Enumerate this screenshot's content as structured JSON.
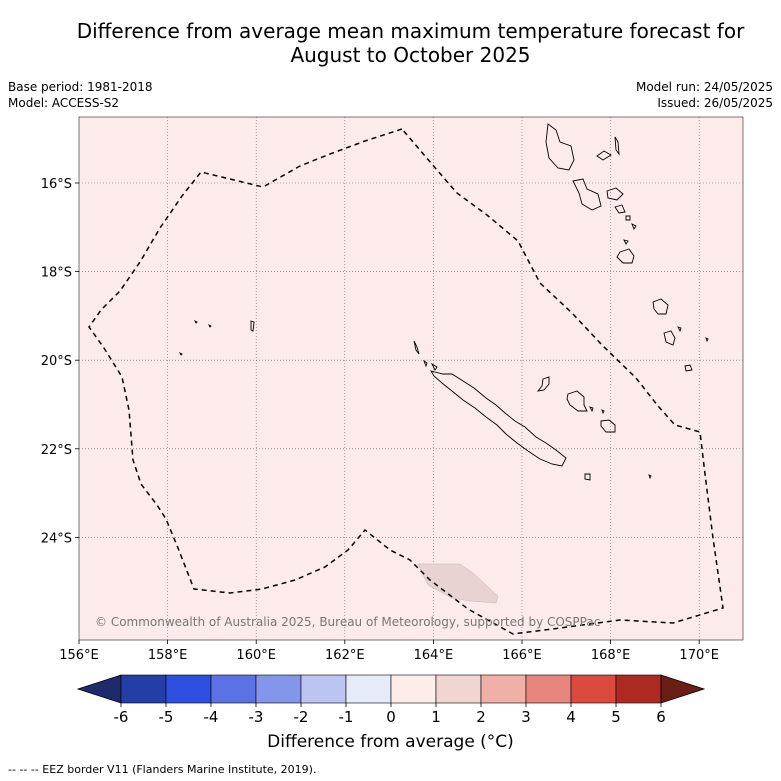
{
  "title_line1": "Difference from average mean maximum temperature forecast for",
  "title_line2": "August to October 2025",
  "base_period": "Base period: 1981-2018",
  "model": "Model: ACCESS-S2",
  "model_run": "Model run: 24/05/2025",
  "issued": "Issued: 26/05/2025",
  "copyright": "© Commonwealth of Australia 2025, Bureau of Meteorology, supported by COSPPac",
  "footer": "--  --  -- EEZ border V11 (Flanders Marine Institute, 2019).",
  "lon_labels": [
    "156°E",
    "158°E",
    "160°E",
    "162°E",
    "164°E",
    "166°E",
    "168°E",
    "170°E"
  ],
  "lat_labels": [
    "16°S",
    "18°S",
    "20°S",
    "22°S",
    "24°S"
  ],
  "colorbar": {
    "title": "Difference from average (°C)",
    "ticks": [
      "-6",
      "-5",
      "-4",
      "-3",
      "-2",
      "-1",
      "0",
      "1",
      "2",
      "3",
      "4",
      "5",
      "6"
    ],
    "colors": [
      "#1f2a6e",
      "#233ea6",
      "#2e4fe0",
      "#5a72e4",
      "#8496ea",
      "#bcc4f2",
      "#e6ebfa",
      "#fcede8",
      "#f0d5d0",
      "#efb0a8",
      "#e8857c",
      "#db4a3e",
      "#ac2a22",
      "#6b1e16"
    ]
  },
  "colors": {
    "map_background": "#fcebea",
    "island_outline": "#000000",
    "gridline": "#666666",
    "shaded_region": "#e8d2d2"
  }
}
